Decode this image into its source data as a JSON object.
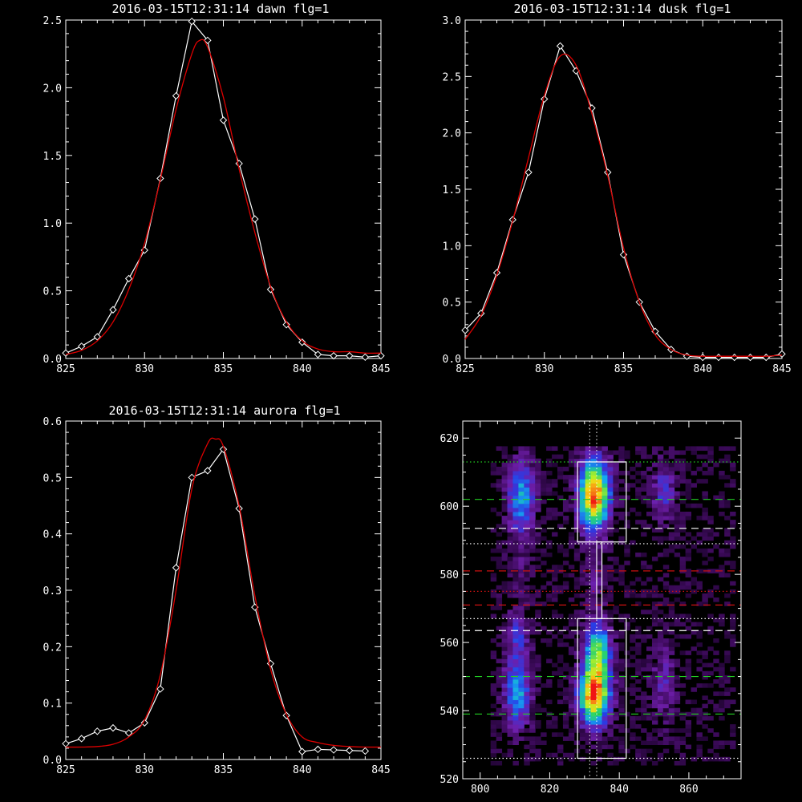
{
  "colors": {
    "background": "#000000",
    "axes": "#ffffff",
    "data_line": "#ffffff",
    "fit_line": "#dd0000",
    "green_dash": "#22cc22",
    "red_dash": "#cc1111",
    "white_dash": "#ffffff"
  },
  "chart_data": [
    {
      "type": "line",
      "title": "2016-03-15T12:31:14 dawn flg=1",
      "xlim": [
        825,
        845
      ],
      "ylim": [
        0,
        2.5
      ],
      "xticks": [
        "825",
        "830",
        "835",
        "840",
        "845"
      ],
      "yticks": [
        "0.0",
        "0.5",
        "1.0",
        "1.5",
        "2.0",
        "2.5"
      ],
      "series": [
        {
          "role": "data",
          "x": [
            825,
            826,
            827,
            828,
            829,
            830,
            831,
            832,
            833,
            834,
            835,
            836,
            837,
            838,
            839,
            840,
            841,
            842,
            843,
            844,
            845
          ],
          "y": [
            0.04,
            0.09,
            0.16,
            0.36,
            0.59,
            0.8,
            1.33,
            1.94,
            2.49,
            2.35,
            1.76,
            1.44,
            1.03,
            0.51,
            0.25,
            0.12,
            0.03,
            0.02,
            0.02,
            0.01,
            0.02
          ]
        },
        {
          "role": "fit",
          "x": [
            825,
            826,
            827,
            828,
            829,
            830,
            831,
            832,
            833,
            833.5,
            834,
            835,
            836,
            837,
            838,
            839,
            840,
            841,
            842,
            843,
            844,
            845
          ],
          "y": [
            0.03,
            0.06,
            0.13,
            0.27,
            0.51,
            0.85,
            1.32,
            1.84,
            2.25,
            2.35,
            2.3,
            1.93,
            1.4,
            0.93,
            0.53,
            0.27,
            0.13,
            0.07,
            0.05,
            0.05,
            0.04,
            0.04
          ]
        }
      ]
    },
    {
      "type": "line",
      "title": "2016-03-15T12:31:14 dusk flg=1",
      "xlim": [
        825,
        845
      ],
      "ylim": [
        0,
        3.0
      ],
      "xticks": [
        "825",
        "830",
        "835",
        "840",
        "845"
      ],
      "yticks": [
        "0.0",
        "0.5",
        "1.0",
        "1.5",
        "2.0",
        "2.5",
        "3.0"
      ],
      "series": [
        {
          "role": "data",
          "x": [
            825,
            826,
            827,
            828,
            829,
            830,
            831,
            832,
            833,
            834,
            835,
            836,
            837,
            838,
            839,
            840,
            841,
            842,
            843,
            844,
            845
          ],
          "y": [
            0.25,
            0.4,
            0.76,
            1.23,
            1.65,
            2.3,
            2.77,
            2.55,
            2.22,
            1.65,
            0.92,
            0.5,
            0.24,
            0.08,
            0.02,
            0.01,
            0.01,
            0.01,
            0.01,
            0.01,
            0.04
          ]
        },
        {
          "role": "fit",
          "x": [
            825,
            826,
            827,
            828,
            829,
            830,
            831,
            832,
            833,
            834,
            835,
            836,
            837,
            838,
            839,
            840,
            841,
            842,
            843,
            844,
            845
          ],
          "y": [
            0.17,
            0.38,
            0.74,
            1.22,
            1.78,
            2.33,
            2.68,
            2.6,
            2.17,
            1.62,
            0.98,
            0.5,
            0.21,
            0.08,
            0.03,
            0.02,
            0.02,
            0.02,
            0.02,
            0.02,
            0.03
          ]
        }
      ]
    },
    {
      "type": "line",
      "title": "2016-03-15T12:31:14 aurora flg=1",
      "xlim": [
        825,
        845
      ],
      "ylim": [
        0,
        0.6
      ],
      "xticks": [
        "825",
        "830",
        "835",
        "840",
        "845"
      ],
      "yticks": [
        "0.0",
        "0.1",
        "0.2",
        "0.3",
        "0.4",
        "0.5",
        "0.6"
      ],
      "series": [
        {
          "role": "data",
          "x": [
            825,
            826,
            827,
            828,
            829,
            830,
            831,
            832,
            833,
            834,
            835,
            836,
            837,
            838,
            839,
            840,
            841,
            842,
            843,
            844
          ],
          "y": [
            0.028,
            0.037,
            0.05,
            0.056,
            0.047,
            0.065,
            0.125,
            0.34,
            0.5,
            0.512,
            0.55,
            0.445,
            0.27,
            0.17,
            0.078,
            0.014,
            0.018,
            0.017,
            0.016,
            0.015
          ]
        },
        {
          "role": "fit",
          "x": [
            825,
            826,
            827,
            828,
            829,
            830,
            831,
            832,
            833,
            834,
            834.5,
            835,
            836,
            837,
            838,
            839,
            840,
            841,
            842,
            843,
            844,
            845
          ],
          "y": [
            0.022,
            0.022,
            0.023,
            0.027,
            0.04,
            0.07,
            0.15,
            0.3,
            0.48,
            0.56,
            0.568,
            0.555,
            0.45,
            0.29,
            0.16,
            0.08,
            0.04,
            0.03,
            0.025,
            0.023,
            0.022,
            0.022
          ]
        }
      ]
    },
    {
      "type": "heatmap",
      "title": "",
      "xlim": [
        795,
        875
      ],
      "ylim": [
        520,
        625
      ],
      "xticks": [
        "800",
        "820",
        "840",
        "860"
      ],
      "yticks": [
        "520",
        "540",
        "560",
        "580",
        "600",
        "620"
      ],
      "blobs": [
        {
          "cx": 811,
          "cy": 602,
          "sx": 2.6,
          "sy": 8,
          "amp": 0.45
        },
        {
          "cx": 810,
          "cy": 545,
          "sx": 2.6,
          "sy": 7,
          "amp": 0.45
        },
        {
          "cx": 810,
          "cy": 562,
          "sx": 2.4,
          "sy": 5,
          "amp": 0.25
        },
        {
          "cx": 832,
          "cy": 603,
          "sx": 3.0,
          "sy": 7,
          "amp": 0.98
        },
        {
          "cx": 832,
          "cy": 544,
          "sx": 3.0,
          "sy": 6,
          "amp": 0.95
        },
        {
          "cx": 833,
          "cy": 557,
          "sx": 2.6,
          "sy": 6,
          "amp": 0.6
        },
        {
          "cx": 852,
          "cy": 604,
          "sx": 2.4,
          "sy": 6,
          "amp": 0.25
        },
        {
          "cx": 852,
          "cy": 548,
          "sx": 2.6,
          "sy": 8,
          "amp": 0.18
        },
        {
          "cx": 832,
          "cy": 578,
          "sx": 2.2,
          "sy": 6,
          "amp": 0.12
        },
        {
          "cx": 810,
          "cy": 580,
          "sx": 2.2,
          "sy": 6,
          "amp": 0.08
        }
      ],
      "hlines": [
        {
          "y": 613,
          "style": "dotted",
          "color": "green"
        },
        {
          "y": 602,
          "style": "dashed",
          "color": "green"
        },
        {
          "y": 593.5,
          "style": "dashed",
          "color": "white"
        },
        {
          "y": 589,
          "style": "dotted",
          "color": "white"
        },
        {
          "y": 581,
          "style": "dashed",
          "color": "red"
        },
        {
          "y": 575,
          "style": "dotted",
          "color": "red"
        },
        {
          "y": 571,
          "style": "dashed",
          "color": "red"
        },
        {
          "y": 567,
          "style": "dotted",
          "color": "white"
        },
        {
          "y": 563.5,
          "style": "dashed",
          "color": "white"
        },
        {
          "y": 550,
          "style": "dashed",
          "color": "green"
        },
        {
          "y": 539,
          "style": "dashed",
          "color": "green"
        },
        {
          "y": 526,
          "style": "dotted",
          "color": "white"
        }
      ],
      "vlines": [
        {
          "x": 831.5,
          "style": "dotted",
          "color": "white"
        },
        {
          "x": 833.5,
          "style": "dotted",
          "color": "white"
        }
      ],
      "boxes": [
        {
          "x0": 828,
          "x1": 842,
          "y0": 589.5,
          "y1": 613
        },
        {
          "x0": 828,
          "x1": 842,
          "y0": 526,
          "y1": 567
        },
        {
          "x0": 833.5,
          "x1": 835,
          "y0": 567,
          "y1": 589.5
        }
      ]
    }
  ]
}
